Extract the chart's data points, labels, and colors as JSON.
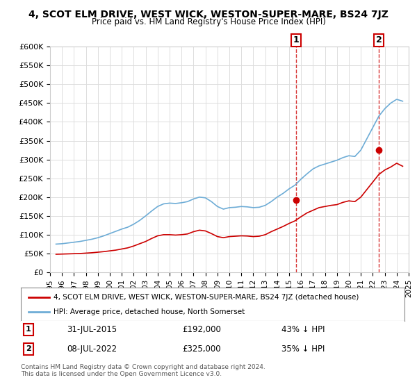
{
  "title": "4, SCOT ELM DRIVE, WEST WICK, WESTON-SUPER-MARE, BS24 7JZ",
  "subtitle": "Price paid vs. HM Land Registry's House Price Index (HPI)",
  "ylabel_ticks": [
    "£0",
    "£50K",
    "£100K",
    "£150K",
    "£200K",
    "£250K",
    "£300K",
    "£350K",
    "£400K",
    "£450K",
    "£500K",
    "£550K",
    "£600K"
  ],
  "ytick_values": [
    0,
    50000,
    100000,
    150000,
    200000,
    250000,
    300000,
    350000,
    400000,
    450000,
    500000,
    550000,
    600000
  ],
  "hpi_color": "#6dacd6",
  "price_color": "#cc0000",
  "vline_color": "#cc0000",
  "marker1_year": 2015.58,
  "marker2_year": 2022.52,
  "marker1_label": "1",
  "marker2_label": "2",
  "legend_line1": "4, SCOT ELM DRIVE, WEST WICK, WESTON-SUPER-MARE, BS24 7JZ (detached house)",
  "legend_line2": "HPI: Average price, detached house, North Somerset",
  "annotation1_date": "31-JUL-2015",
  "annotation1_price": "£192,000",
  "annotation1_hpi": "43% ↓ HPI",
  "annotation2_date": "08-JUL-2022",
  "annotation2_price": "£325,000",
  "annotation2_hpi": "35% ↓ HPI",
  "footer": "Contains HM Land Registry data © Crown copyright and database right 2024.\nThis data is licensed under the Open Government Licence v3.0.",
  "background_color": "#ffffff",
  "grid_color": "#dddddd",
  "hpi_data_years": [
    1995.5,
    1996.0,
    1996.5,
    1997.0,
    1997.5,
    1998.0,
    1998.5,
    1999.0,
    1999.5,
    2000.0,
    2000.5,
    2001.0,
    2001.5,
    2002.0,
    2002.5,
    2003.0,
    2003.5,
    2004.0,
    2004.5,
    2005.0,
    2005.5,
    2006.0,
    2006.5,
    2007.0,
    2007.5,
    2008.0,
    2008.5,
    2009.0,
    2009.5,
    2010.0,
    2010.5,
    2011.0,
    2011.5,
    2012.0,
    2012.5,
    2013.0,
    2013.5,
    2014.0,
    2014.5,
    2015.0,
    2015.5,
    2016.0,
    2016.5,
    2017.0,
    2017.5,
    2018.0,
    2018.5,
    2019.0,
    2019.5,
    2020.0,
    2020.5,
    2021.0,
    2021.5,
    2022.0,
    2022.5,
    2023.0,
    2023.5,
    2024.0,
    2024.5
  ],
  "hpi_data_values": [
    75000,
    76000,
    78000,
    80000,
    82000,
    85000,
    88000,
    92000,
    97000,
    103000,
    109000,
    115000,
    120000,
    128000,
    138000,
    150000,
    163000,
    175000,
    182000,
    184000,
    183000,
    185000,
    188000,
    195000,
    200000,
    198000,
    188000,
    175000,
    168000,
    172000,
    173000,
    175000,
    174000,
    172000,
    173000,
    178000,
    188000,
    200000,
    210000,
    222000,
    232000,
    248000,
    262000,
    275000,
    283000,
    288000,
    293000,
    298000,
    305000,
    310000,
    308000,
    325000,
    355000,
    385000,
    415000,
    435000,
    450000,
    460000,
    455000
  ],
  "price_data_years": [
    1995.5,
    1996.0,
    1996.5,
    1997.0,
    1997.5,
    1998.0,
    1998.5,
    1999.0,
    1999.5,
    2000.0,
    2000.5,
    2001.0,
    2001.5,
    2002.0,
    2002.5,
    2003.0,
    2003.5,
    2004.0,
    2004.5,
    2005.0,
    2005.5,
    2006.0,
    2006.5,
    2007.0,
    2007.5,
    2008.0,
    2008.5,
    2009.0,
    2009.5,
    2010.0,
    2010.5,
    2011.0,
    2011.5,
    2012.0,
    2012.5,
    2013.0,
    2013.5,
    2014.0,
    2014.5,
    2015.0,
    2015.5,
    2016.0,
    2016.5,
    2017.0,
    2017.5,
    2018.0,
    2018.5,
    2019.0,
    2019.5,
    2020.0,
    2020.5,
    2021.0,
    2021.5,
    2022.0,
    2022.5,
    2023.0,
    2023.5,
    2024.0,
    2024.5
  ],
  "price_data_values": [
    48000,
    48500,
    49000,
    49500,
    50000,
    51000,
    52000,
    53500,
    55000,
    57000,
    59000,
    62000,
    65000,
    70000,
    76000,
    82000,
    90000,
    97000,
    100000,
    100000,
    99000,
    100000,
    102000,
    108000,
    112000,
    110000,
    103000,
    95000,
    92000,
    95000,
    96000,
    97000,
    96500,
    95000,
    96000,
    100000,
    108000,
    115000,
    122000,
    130000,
    137000,
    148000,
    158000,
    165000,
    172000,
    175000,
    178000,
    180000,
    186000,
    190000,
    188000,
    200000,
    220000,
    240000,
    260000,
    272000,
    280000,
    290000,
    282000
  ],
  "sale1_year": 2015.58,
  "sale1_price": 192000,
  "sale2_year": 2022.52,
  "sale2_price": 325000,
  "xmin": 1995,
  "xmax": 2025,
  "ymin": 0,
  "ymax": 600000
}
